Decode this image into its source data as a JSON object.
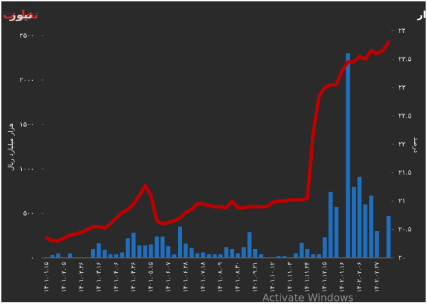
{
  "chart_data": {
    "type": "combo",
    "title": "روند تزریق پول بانک مرکزی در بازار بین بانکی و نرخ بهره این بازار",
    "logo": [
      "تجارت",
      "نیوز"
    ],
    "ylabel": "هزار میلیارد ریال",
    "y2label": "درصد",
    "watermark": "Activate Windows",
    "categories": [
      "۱۴۰۱.۰۱.۱۵",
      null,
      null,
      "۱۴۰۱.۰۲.۰۵",
      null,
      null,
      "۱۴۰۱.۰۲.۲۶",
      null,
      null,
      "۱۴۰۱.۰۳.۱۶",
      null,
      null,
      "۱۴۰۱.۰۴.۰۶",
      null,
      null,
      "۱۴۰۱.۰۴.۲۶",
      null,
      null,
      "۱۴۰۱.۰۵.۱۵",
      null,
      null,
      "۱۴۰۱.۰۶.۰۷",
      null,
      null,
      "۱۴۰۱.۰۶.۲۸",
      null,
      null,
      "۱۴۰۱.۰۷.۱۸",
      null,
      null,
      "۱۴۰۱.۰۸.۰۹",
      null,
      null,
      "۱۴۰۱.۰۸.۳۰",
      null,
      null,
      "۱۴۰۱.۰۹.۲۱",
      null,
      null,
      "۱۴۰۱.۱۰.۱۲",
      null,
      null,
      "۱۴۰۱.۱۱.۰۳",
      null,
      null,
      "۱۴۰۱.۱۱.۲۴",
      null,
      null,
      "۱۴۰۱.۱۲.۱۵",
      null,
      null,
      "۱۴۰۲.۰۱.۱۶",
      null,
      null,
      "۱۴۰۲.۰۲.۰۶",
      null,
      null,
      "۱۴۰۲.۰۲.۲۷",
      null,
      null
    ],
    "series": [
      {
        "type": "bar",
        "axis": "y",
        "color": "#1f6fc0",
        "values": [
          0,
          30,
          50,
          0,
          50,
          0,
          0,
          0,
          100,
          165,
          90,
          40,
          40,
          60,
          220,
          280,
          140,
          140,
          150,
          240,
          240,
          130,
          40,
          350,
          160,
          110,
          50,
          60,
          40,
          40,
          40,
          120,
          100,
          50,
          120,
          290,
          100,
          40,
          0,
          0,
          20,
          20,
          0,
          50,
          170,
          100,
          40,
          40,
          230,
          740,
          570,
          0,
          2300,
          800,
          910,
          600,
          700,
          300,
          0,
          470
        ]
      },
      {
        "type": "line",
        "axis": "y2",
        "color": "#c00000",
        "values": [
          20.35,
          20.3,
          20.3,
          20.35,
          20.4,
          20.42,
          20.45,
          20.5,
          20.55,
          20.55,
          20.52,
          20.6,
          20.7,
          20.8,
          20.85,
          20.95,
          21.1,
          21.27,
          21.1,
          20.65,
          20.6,
          20.62,
          20.65,
          20.7,
          20.8,
          20.85,
          20.95,
          20.95,
          20.92,
          20.9,
          20.9,
          20.88,
          21.0,
          20.88,
          20.88,
          20.9,
          20.9,
          20.9,
          20.9,
          20.98,
          21.0,
          21.0,
          21.02,
          21.02,
          21.02,
          21.05,
          22.2,
          22.85,
          23.0,
          23.05,
          23.05,
          23.3,
          23.45,
          23.45,
          23.55,
          23.5,
          23.65,
          23.6,
          23.65,
          23.8
        ]
      }
    ],
    "ylim": [
      0,
      2500
    ],
    "yticks": [
      {
        "value": 0,
        "label": "۰"
      },
      {
        "value": 500,
        "label": "۵۰۰"
      },
      {
        "value": 1000,
        "label": "۱۰۰۰"
      },
      {
        "value": 1500,
        "label": "۱۵۰۰"
      },
      {
        "value": 2000,
        "label": "۲۰۰۰"
      },
      {
        "value": 2500,
        "label": "۲۵۰۰"
      }
    ],
    "y2lim": [
      20,
      24
    ],
    "y2ticks": [
      {
        "value": 20,
        "label": "۲۰"
      },
      {
        "value": 20.5,
        "label": "۲۰.۵"
      },
      {
        "value": 21,
        "label": "۲۱"
      },
      {
        "value": 21.5,
        "label": "۲۱.۵"
      },
      {
        "value": 22,
        "label": "۲۲"
      },
      {
        "value": 22.5,
        "label": "۲۲.۵"
      },
      {
        "value": 23,
        "label": "۲۳"
      },
      {
        "value": 23.5,
        "label": "۲۳.۵"
      },
      {
        "value": 24,
        "label": "۲۴"
      }
    ],
    "grid": false
  }
}
